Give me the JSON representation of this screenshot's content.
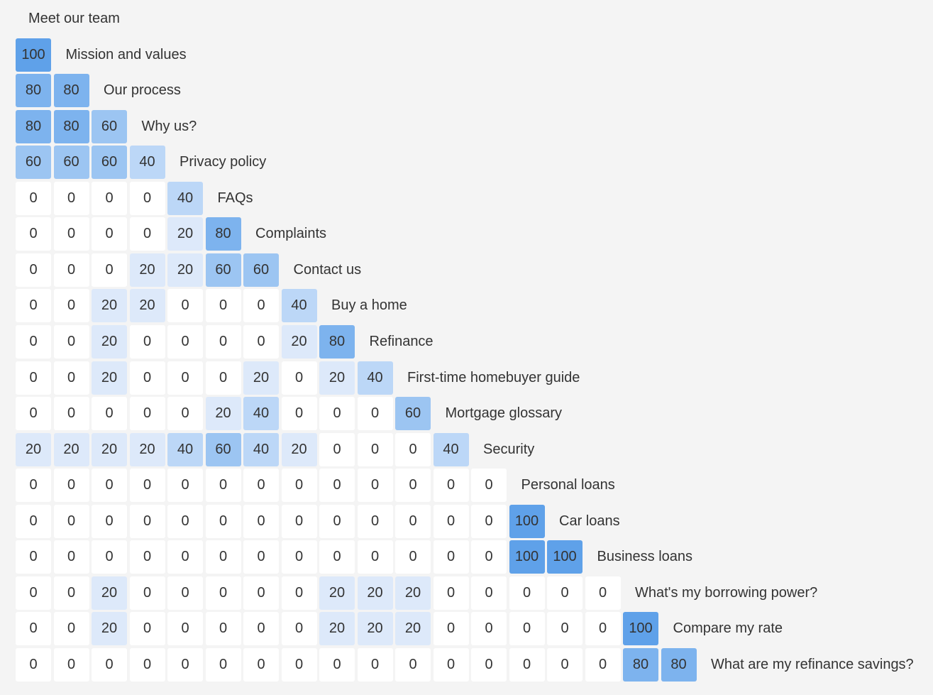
{
  "chart_data": {
    "type": "heatmap",
    "title": "",
    "xlabel": "",
    "ylabel": "",
    "labels": [
      "Meet our team",
      "Mission and values",
      "Our process",
      "Why us?",
      "Privacy policy",
      "FAQs",
      "Complaints",
      "Contact us",
      "Buy a home",
      "Refinance",
      "First-time homebuyer guide",
      "Mortgage glossary",
      "Security",
      "Personal loans",
      "Car loans",
      "Business loans",
      "What's my borrowing power?",
      "Compare my rate",
      "What are my refinance savings?"
    ],
    "rows": [
      [],
      [
        100
      ],
      [
        80,
        80
      ],
      [
        80,
        80,
        60
      ],
      [
        60,
        60,
        60,
        40
      ],
      [
        0,
        0,
        0,
        0,
        40
      ],
      [
        0,
        0,
        0,
        0,
        20,
        80
      ],
      [
        0,
        0,
        0,
        20,
        20,
        60,
        60
      ],
      [
        0,
        0,
        20,
        20,
        0,
        0,
        0,
        40
      ],
      [
        0,
        0,
        20,
        0,
        0,
        0,
        0,
        20,
        80
      ],
      [
        0,
        0,
        20,
        0,
        0,
        0,
        20,
        0,
        20,
        40
      ],
      [
        0,
        0,
        0,
        0,
        0,
        20,
        40,
        0,
        0,
        0,
        60
      ],
      [
        20,
        20,
        20,
        20,
        40,
        60,
        40,
        20,
        0,
        0,
        0,
        40
      ],
      [
        0,
        0,
        0,
        0,
        0,
        0,
        0,
        0,
        0,
        0,
        0,
        0,
        0
      ],
      [
        0,
        0,
        0,
        0,
        0,
        0,
        0,
        0,
        0,
        0,
        0,
        0,
        0,
        100
      ],
      [
        0,
        0,
        0,
        0,
        0,
        0,
        0,
        0,
        0,
        0,
        0,
        0,
        0,
        100,
        100
      ],
      [
        0,
        0,
        20,
        0,
        0,
        0,
        0,
        0,
        20,
        20,
        20,
        0,
        0,
        0,
        0,
        0
      ],
      [
        0,
        0,
        20,
        0,
        0,
        0,
        0,
        0,
        20,
        20,
        20,
        0,
        0,
        0,
        0,
        0,
        100
      ],
      [
        0,
        0,
        0,
        0,
        0,
        0,
        0,
        0,
        0,
        0,
        0,
        0,
        0,
        0,
        0,
        0,
        80,
        80
      ]
    ],
    "colors": {
      "0": "#ffffff",
      "20": "#dde9fa",
      "40": "#bcd7f7",
      "60": "#9cc5f2",
      "80": "#7db3ee",
      "100": "#5fa1e9"
    }
  }
}
